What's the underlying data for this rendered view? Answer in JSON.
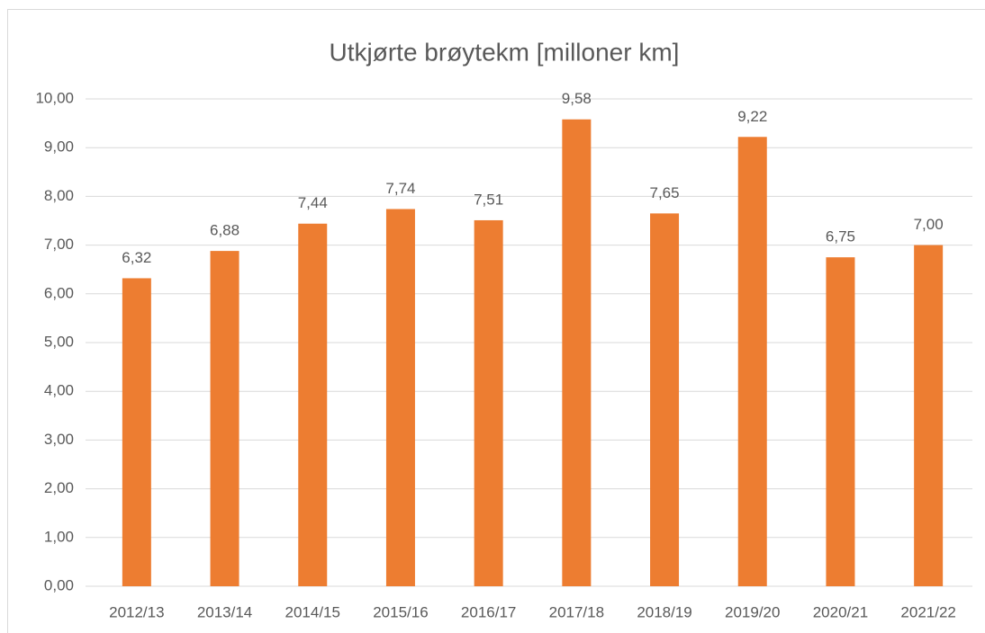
{
  "chart_data": {
    "type": "bar",
    "title": "Utkjørte brøytekm [milloner km]",
    "categories": [
      "2012/13",
      "2013/14",
      "2014/15",
      "2015/16",
      "2016/17",
      "2017/18",
      "2018/19",
      "2019/20",
      "2020/21",
      "2021/22"
    ],
    "values": [
      6.32,
      6.88,
      7.44,
      7.74,
      7.51,
      9.58,
      7.65,
      9.22,
      6.75,
      7.0
    ],
    "value_labels": [
      "6,32",
      "6,88",
      "7,44",
      "7,74",
      "7,51",
      "9,58",
      "7,65",
      "9,22",
      "6,75",
      "7,00"
    ],
    "color": "#ed7d31",
    "ylim": [
      0,
      10
    ],
    "yticks": [
      {
        "value": 0,
        "label": "0,00"
      },
      {
        "value": 1,
        "label": "1,00"
      },
      {
        "value": 2,
        "label": "2,00"
      },
      {
        "value": 3,
        "label": "3,00"
      },
      {
        "value": 4,
        "label": "4,00"
      },
      {
        "value": 5,
        "label": "5,00"
      },
      {
        "value": 6,
        "label": "6,00"
      },
      {
        "value": 7,
        "label": "7,00"
      },
      {
        "value": 8,
        "label": "8,00"
      },
      {
        "value": 9,
        "label": "9,00"
      },
      {
        "value": 10,
        "label": "10,00"
      }
    ],
    "grid": true
  }
}
